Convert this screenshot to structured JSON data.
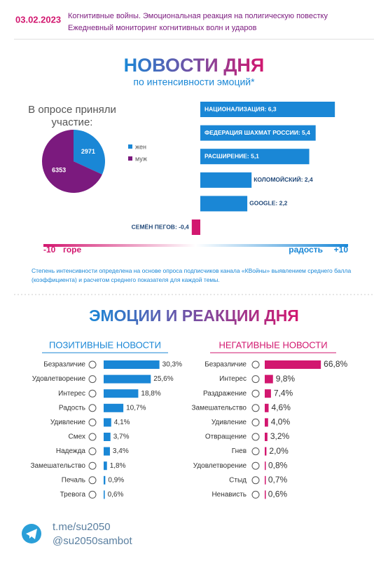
{
  "header": {
    "date": "03.02.2023",
    "line1": "Когнитивные войны. Эмоциональная реакция на полигическую повестку",
    "line2": "Ежедневный мониторинг когнитивных волн и ударов"
  },
  "chart_data": [
    {
      "type": "pie",
      "title": "В опросе приняли участие:",
      "categories": [
        "жен",
        "муж"
      ],
      "values": [
        2971,
        6353
      ],
      "colors": [
        "#1a87d6",
        "#7b1a7e"
      ]
    },
    {
      "type": "bar",
      "title": "НОВОСТИ ДНЯ",
      "subtitle": "по интенсивности эмоций*",
      "categories": [
        "НАЦИОНАЛИЗАЦИЯ: 6,3",
        "ФЕДЕРАЦИЯ ШАХМАТ РОССИИ: 5,4",
        "РАСШИРЕНИЕ: 5,1",
        "КОЛОМОЙСКИЙ: 2,4",
        "GOOGLE: 2,2",
        "СЕМЁН ПЕГОВ: -0,4"
      ],
      "values": [
        6.3,
        5.4,
        5.1,
        2.4,
        2.2,
        -0.4
      ],
      "colors": [
        "#1a87d6",
        "#1a87d6",
        "#1a87d6",
        "#1a87d6",
        "#1a87d6",
        "#d2176f"
      ],
      "xlim": [
        -1,
        7
      ],
      "legend_scale": [
        {
          "value": -10,
          "label": "-10"
        },
        {
          "value": 10,
          "label": "+10"
        }
      ],
      "legend_words": [
        "горе",
        "радость"
      ],
      "note": "Степень интенсивности определена на основе опроса подписчиков канала «КВойны» выявлением среднего балла (коэффициента) и расчетом среднего показателя для каждой темы."
    },
    {
      "type": "hbar",
      "section_title": "ЭМОЦИИ И РЕАКЦИИ ДНЯ",
      "title": "ПОЗИТИВНЫЕ НОВОСТИ",
      "color": "#1a87d6",
      "categories": [
        "Безразличие",
        "Удовлетворение",
        "Интерес",
        "Радость",
        "Удивление",
        "Смех",
        "Надежда",
        "Замешательство",
        "Печаль",
        "Тревога"
      ],
      "values": [
        30.3,
        25.6,
        18.8,
        10.7,
        4.1,
        3.7,
        3.4,
        1.8,
        0.9,
        0.6
      ],
      "value_labels": [
        "30,3%",
        "25,6%",
        "18,8%",
        "10,7%",
        "4,1%",
        "3,7%",
        "3,4%",
        "1,8%",
        "0,9%",
        "0,6%"
      ],
      "xlim": [
        0,
        35
      ]
    },
    {
      "type": "hbar",
      "title": "НЕГАТИВНЫЕ НОВОСТИ",
      "color": "#d2176f",
      "categories": [
        "Безразличие",
        "Интерес",
        "Раздражение",
        "Замешательство",
        "Удивление",
        "Отвращение",
        "Гнев",
        "Удовлетворение",
        "Стыд",
        "Ненависть"
      ],
      "values": [
        66.8,
        9.8,
        7.4,
        4.6,
        4.0,
        3.2,
        2.0,
        0.8,
        0.7,
        0.6
      ],
      "value_labels": [
        "66,8%",
        "9,8%",
        "7,4%",
        "4,6%",
        "4,0%",
        "3,2%",
        "2,0%",
        "0,8%",
        "0,7%",
        "0,6%"
      ],
      "xlim": [
        0,
        80
      ]
    }
  ],
  "footer": {
    "link": "t.me/su2050",
    "bot": "@su2050sambot"
  }
}
